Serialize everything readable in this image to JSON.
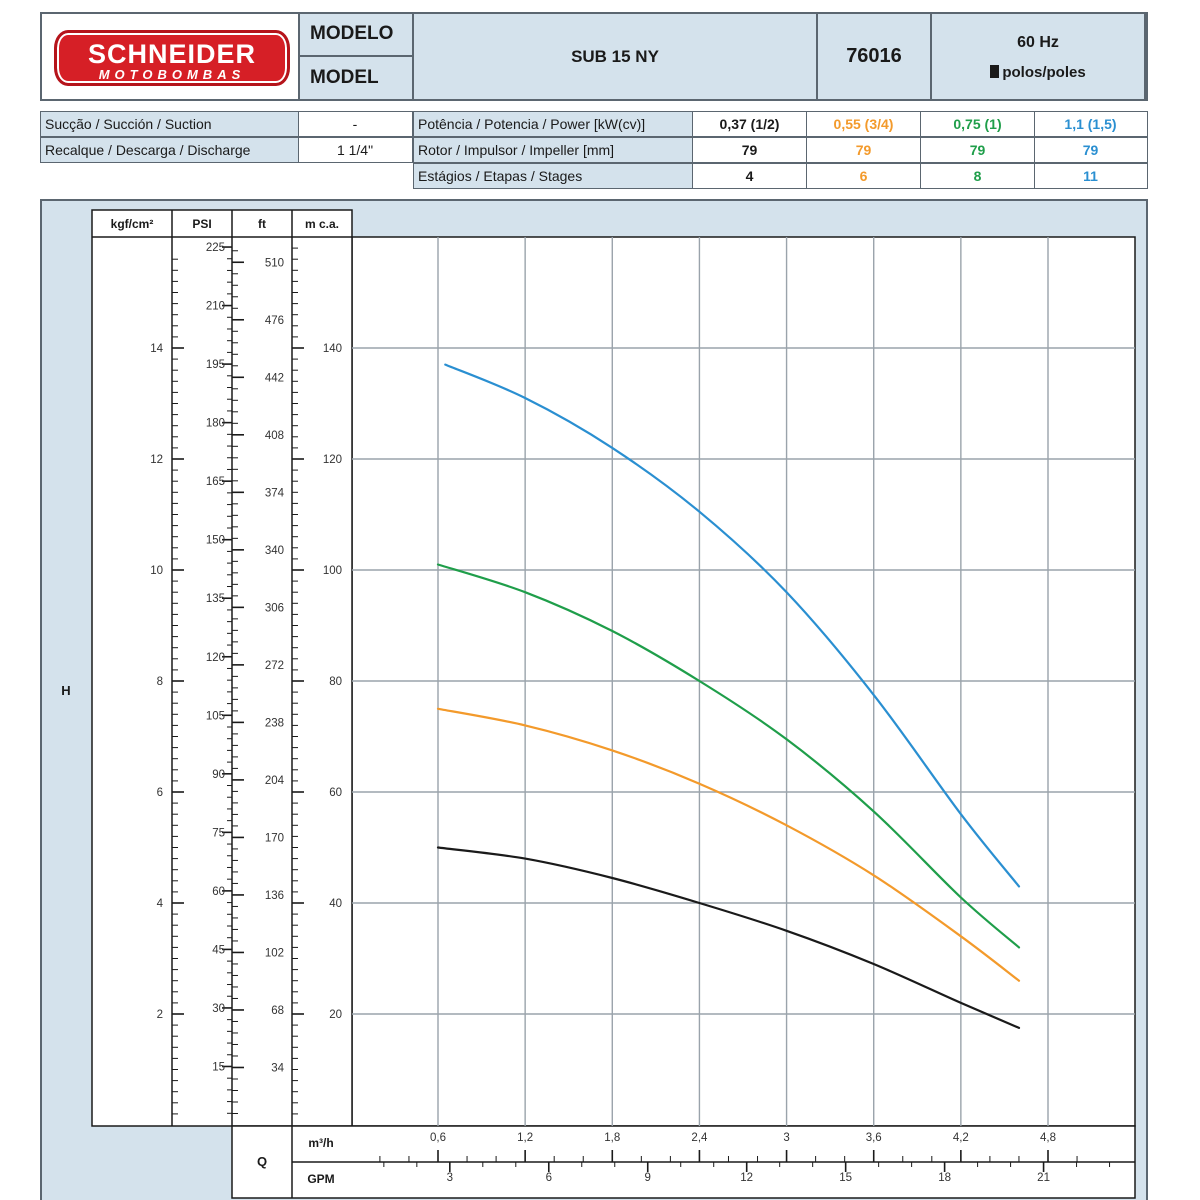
{
  "brand": {
    "name": "SCHNEIDER",
    "sub": "MOTOBOMBAS"
  },
  "header": {
    "model_label_pt": "MODELO",
    "model_label_en": "MODEL",
    "model_name": "SUB 15 NY",
    "model_code": "76016",
    "frequency": "60 Hz",
    "poles": "polos/poles"
  },
  "connections": [
    {
      "label": "Sucção / Succión / Suction",
      "value": "-"
    },
    {
      "label": "Recalque / Descarga / Discharge",
      "value": "1 1/4\""
    }
  ],
  "specs": [
    {
      "label": "Potência / Potencia / Power [kW(cv)]",
      "values": [
        "0,37 (1/2)",
        "0,55 (3/4)",
        "0,75 (1)",
        "1,1 (1,5)"
      ]
    },
    {
      "label": "Rotor / Impulsor / Impeller [mm]",
      "values": [
        "79",
        "79",
        "79",
        "79"
      ]
    },
    {
      "label": "Estágios / Etapas / Stages",
      "values": [
        "4",
        "6",
        "8",
        "11"
      ]
    }
  ],
  "colors": {
    "black": "#1a1a1a",
    "orange": "#f39a2b",
    "green": "#1f9e4a",
    "blue": "#2a8fd1",
    "panel": "#d4e2ec",
    "grid": "#9aa3ab"
  },
  "chart_data": {
    "type": "line",
    "ylabel": "H",
    "xlabel": "Q",
    "x_unit": "m³/h",
    "x2_unit": "GPM",
    "xlim": [
      0,
      5.4
    ],
    "ylim": [
      0,
      160
    ],
    "x_ticks": [
      "0,6",
      "1,2",
      "1,8",
      "2,4",
      "3",
      "3,6",
      "4,2",
      "4,8"
    ],
    "x_tick_values": [
      0.6,
      1.2,
      1.8,
      2.4,
      3.0,
      3.6,
      4.2,
      4.8
    ],
    "gpm_ticks": [
      "3",
      "6",
      "9",
      "12",
      "15",
      "18",
      "21"
    ],
    "gpm_tick_values": [
      3,
      6,
      9,
      12,
      15,
      18,
      21
    ],
    "y_axes": [
      {
        "unit": "kgf/cm²",
        "ticks": [
          "2",
          "4",
          "6",
          "8",
          "10",
          "12",
          "14"
        ],
        "values": [
          2,
          4,
          6,
          8,
          10,
          12,
          14
        ]
      },
      {
        "unit": "PSI",
        "ticks": [
          "15",
          "30",
          "45",
          "60",
          "75",
          "90",
          "105",
          "120",
          "135",
          "150",
          "165",
          "180",
          "195",
          "210",
          "225"
        ],
        "values": [
          15,
          30,
          45,
          60,
          75,
          90,
          105,
          120,
          135,
          150,
          165,
          180,
          195,
          210,
          225
        ]
      },
      {
        "unit": "ft",
        "ticks": [
          "34",
          "68",
          "102",
          "136",
          "170",
          "204",
          "238",
          "272",
          "306",
          "340",
          "374",
          "408",
          "442",
          "476",
          "510"
        ],
        "values": [
          34,
          68,
          102,
          136,
          170,
          204,
          238,
          272,
          306,
          340,
          374,
          408,
          442,
          476,
          510
        ]
      },
      {
        "unit": "m c.a.",
        "ticks": [
          "20",
          "40",
          "60",
          "80",
          "100",
          "120",
          "140"
        ],
        "values": [
          20,
          40,
          60,
          80,
          100,
          120,
          140
        ]
      }
    ],
    "grid": true,
    "series": [
      {
        "name": "0,37 (1/2)",
        "color": "#1a1a1a",
        "x": [
          0.6,
          1.2,
          1.8,
          2.4,
          3.0,
          3.6,
          4.2,
          4.6
        ],
        "y": [
          50,
          48,
          44.5,
          40,
          35,
          29,
          22,
          17.5
        ]
      },
      {
        "name": "0,55 (3/4)",
        "color": "#f39a2b",
        "x": [
          0.6,
          1.2,
          1.8,
          2.4,
          3.0,
          3.6,
          4.2,
          4.6
        ],
        "y": [
          75,
          72,
          67.5,
          61.5,
          54,
          45,
          34,
          26
        ]
      },
      {
        "name": "0,75 (1)",
        "color": "#1f9e4a",
        "x": [
          0.6,
          1.2,
          1.8,
          2.4,
          3.0,
          3.6,
          4.2,
          4.6
        ],
        "y": [
          101,
          96,
          89,
          80,
          69.5,
          56.5,
          41,
          32
        ]
      },
      {
        "name": "1,1 (1,5)",
        "color": "#2a8fd1",
        "x": [
          0.65,
          1.2,
          1.8,
          2.4,
          3.0,
          3.6,
          4.2,
          4.6
        ],
        "y": [
          137,
          131,
          122,
          110.5,
          96,
          77.5,
          56,
          43
        ]
      }
    ]
  }
}
